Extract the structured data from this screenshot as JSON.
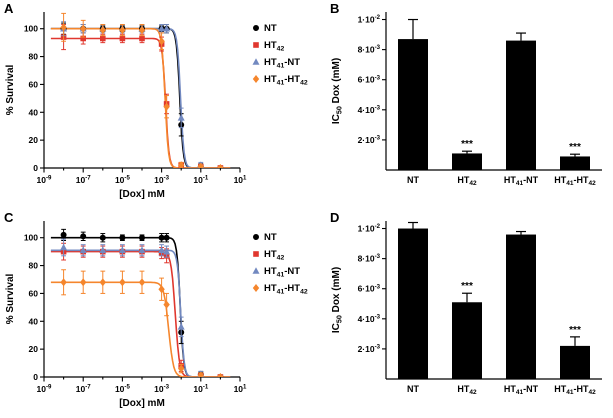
{
  "figure": {
    "panels": [
      {
        "label": "A"
      },
      {
        "label": "B"
      },
      {
        "label": "C"
      },
      {
        "label": "D"
      }
    ]
  },
  "colors": {
    "nt": "#000000",
    "ht42": "#e0372e",
    "ht41nt": "#7289c0",
    "ht41ht42": "#f5862d"
  },
  "chart_data": [
    {
      "panel": "A",
      "type": "line",
      "title": "",
      "xlabel": "[Dox] mM",
      "ylabel": "% Survival",
      "x_scale": "log",
      "xlim": [
        1e-09,
        10
      ],
      "ylim": [
        0,
        112
      ],
      "grid": false,
      "legend_position": "right",
      "x_ticks": [
        {
          "value": 1e-09,
          "label": "10^{-9}"
        },
        {
          "value": 1e-07,
          "label": "10^{-7}"
        },
        {
          "value": 1e-05,
          "label": "10^{-5}"
        },
        {
          "value": 0.001,
          "label": "10^{-3}"
        },
        {
          "value": 0.1,
          "label": "10^{-1}"
        },
        {
          "value": 10,
          "label": "10^{1}"
        }
      ],
      "y_ticks": [
        0,
        20,
        40,
        60,
        80,
        100
      ],
      "x": [
        1e-08,
        1e-07,
        1e-06,
        1e-05,
        0.0001,
        0.001,
        0.0018,
        0.01,
        0.1,
        1
      ],
      "series": [
        {
          "name": "NT",
          "marker": "circle",
          "color": "#000000",
          "plateau": 100,
          "ic50": 0.0085,
          "hill": 5,
          "values": [
            100,
            100,
            100,
            100,
            100,
            100,
            100,
            31,
            1,
            0
          ],
          "errors": [
            4,
            3,
            2,
            2,
            2,
            2,
            3,
            8,
            2,
            1
          ]
        },
        {
          "name": "HT_{42}",
          "marker": "square",
          "color": "#e0372e",
          "plateau": 93,
          "ic50": 0.0016,
          "hill": 5,
          "values": [
            94,
            93,
            93,
            93,
            93,
            89,
            46,
            2,
            1,
            0
          ],
          "errors": [
            9,
            4,
            3,
            3,
            3,
            5,
            7,
            2,
            1,
            1
          ]
        },
        {
          "name": "HT_{41}-NT",
          "marker": "triangle",
          "color": "#7289c0",
          "plateau": 100,
          "ic50": 0.0093,
          "hill": 5,
          "values": [
            100,
            100,
            100,
            100,
            100,
            100,
            100,
            36,
            2,
            0
          ],
          "errors": [
            5,
            3,
            3,
            3,
            3,
            3,
            3,
            7,
            2,
            1
          ]
        },
        {
          "name": "HT_{41}-HT_{42}",
          "marker": "diamond",
          "color": "#f5862d",
          "plateau": 100,
          "ic50": 0.0015,
          "hill": 5,
          "values": [
            101,
            100,
            99,
            99,
            99,
            91,
            44,
            2,
            1,
            0
          ],
          "errors": [
            10,
            6,
            4,
            4,
            4,
            6,
            8,
            2,
            1,
            1
          ]
        }
      ]
    },
    {
      "panel": "B",
      "type": "bar",
      "title": "",
      "xlabel": "",
      "ylabel": "IC_{50} Dox (mM)",
      "bar_color": "#000000",
      "ylim": [
        0,
        0.0105
      ],
      "categories": [
        "NT",
        "HT_{42}",
        "HT_{41}-NT",
        "HT_{41}-HT_{42}"
      ],
      "values": [
        0.0087,
        0.0011,
        0.0086,
        0.0009
      ],
      "errors": [
        0.0013,
        0.00015,
        0.0005,
        0.00015
      ],
      "significance": [
        "",
        "***",
        "",
        "***"
      ],
      "y_ticks": [
        {
          "value": 0.002,
          "label": "2·10^{-3}"
        },
        {
          "value": 0.004,
          "label": "4·10^{-3}"
        },
        {
          "value": 0.006,
          "label": "6·10^{-3}"
        },
        {
          "value": 0.008,
          "label": "8·10^{-3}"
        },
        {
          "value": 0.01,
          "label": "1·10^{-2}"
        }
      ]
    },
    {
      "panel": "C",
      "type": "line",
      "title": "",
      "xlabel": "[Dox] mM",
      "ylabel": "% Survival",
      "x_scale": "log",
      "xlim": [
        1e-09,
        10
      ],
      "ylim": [
        0,
        112
      ],
      "grid": false,
      "legend_position": "right",
      "x_ticks": [
        {
          "value": 1e-09,
          "label": "10^{-9}"
        },
        {
          "value": 1e-07,
          "label": "10^{-7}"
        },
        {
          "value": 1e-05,
          "label": "10^{-5}"
        },
        {
          "value": 0.001,
          "label": "10^{-3}"
        },
        {
          "value": 0.1,
          "label": "10^{-1}"
        },
        {
          "value": 10,
          "label": "10^{1}"
        }
      ],
      "y_ticks": [
        0,
        20,
        40,
        60,
        80,
        100
      ],
      "x": [
        1e-08,
        1e-07,
        1e-06,
        1e-05,
        0.0001,
        0.001,
        0.0018,
        0.01,
        0.1,
        1
      ],
      "series": [
        {
          "name": "NT",
          "marker": "circle",
          "color": "#000000",
          "plateau": 100,
          "ic50": 0.009,
          "hill": 5,
          "values": [
            102,
            101,
            100,
            100,
            100,
            100,
            100,
            32,
            2,
            0
          ],
          "errors": [
            4,
            3,
            3,
            2,
            2,
            3,
            3,
            8,
            2,
            1
          ]
        },
        {
          "name": "HT_{42}",
          "marker": "square",
          "color": "#e0372e",
          "plateau": 90,
          "ic50": 0.005,
          "hill": 4,
          "values": [
            90,
            90,
            90,
            90,
            90,
            89,
            87,
            8,
            1,
            0
          ],
          "errors": [
            6,
            4,
            4,
            4,
            4,
            4,
            5,
            4,
            1,
            1
          ]
        },
        {
          "name": "HT_{41}-NT",
          "marker": "triangle",
          "color": "#7289c0",
          "plateau": 91,
          "ic50": 0.0095,
          "hill": 5,
          "values": [
            93,
            91,
            91,
            91,
            91,
            91,
            90,
            36,
            2,
            0
          ],
          "errors": [
            6,
            4,
            4,
            4,
            4,
            4,
            4,
            7,
            2,
            1
          ]
        },
        {
          "name": "HT_{41}-HT_{42}",
          "marker": "diamond",
          "color": "#f5862d",
          "plateau": 68,
          "ic50": 0.0023,
          "hill": 3.5,
          "values": [
            68,
            68,
            68,
            68,
            68,
            63,
            52,
            6,
            1,
            0
          ],
          "errors": [
            9,
            8,
            8,
            8,
            8,
            8,
            8,
            3,
            2,
            1
          ]
        }
      ]
    },
    {
      "panel": "D",
      "type": "bar",
      "title": "",
      "xlabel": "",
      "ylabel": "IC_{50} Dox (mM)",
      "bar_color": "#000000",
      "ylim": [
        0,
        0.0105
      ],
      "categories": [
        "NT",
        "HT_{42}",
        "HT_{41}-NT",
        "HT_{41}-HT_{42}"
      ],
      "values": [
        0.01,
        0.0051,
        0.0096,
        0.0022
      ],
      "errors": [
        0.0004,
        0.0006,
        0.0002,
        0.0006
      ],
      "significance": [
        "",
        "***",
        "",
        "***"
      ],
      "y_ticks": [
        {
          "value": 0.002,
          "label": "2·10^{-3}"
        },
        {
          "value": 0.004,
          "label": "4·10^{-3}"
        },
        {
          "value": 0.006,
          "label": "6·10^{-3}"
        },
        {
          "value": 0.008,
          "label": "8·10^{-3}"
        },
        {
          "value": 0.01,
          "label": "1·10^{-2}"
        }
      ]
    }
  ]
}
